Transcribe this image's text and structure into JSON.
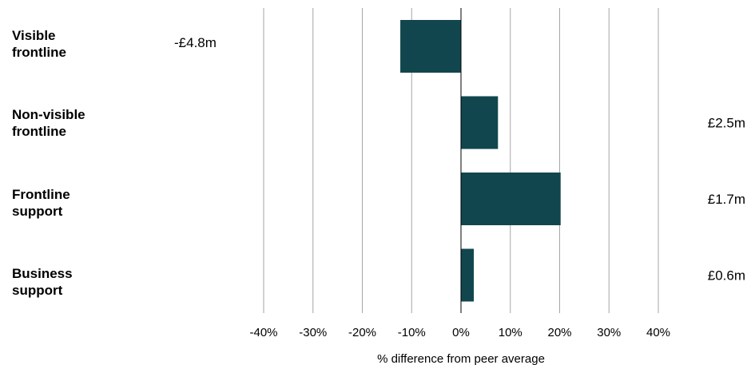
{
  "chart_data": {
    "type": "bar",
    "orientation": "horizontal",
    "categories": [
      "Visible\nfrontline",
      "Non-visible\nfrontline",
      "Frontline\nsupport",
      "Business\nsupport"
    ],
    "values": [
      -12.3,
      7.5,
      20.2,
      2.6
    ],
    "value_labels": [
      "-£4.8m",
      "£2.5m",
      "£1.7m",
      "£0.6m"
    ],
    "xlabel": "% difference from peer average",
    "xlim": [
      -40,
      40
    ],
    "xticks": [
      -40,
      -30,
      -20,
      -10,
      0,
      10,
      20,
      30,
      40
    ],
    "xtick_labels": [
      "-40%",
      "-30%",
      "-20%",
      "-10%",
      "0%",
      "10%",
      "20%",
      "30%",
      "40%"
    ],
    "grid": "vertical",
    "bar_color": "#12464f",
    "gridline_color": "#a6a6a6"
  }
}
